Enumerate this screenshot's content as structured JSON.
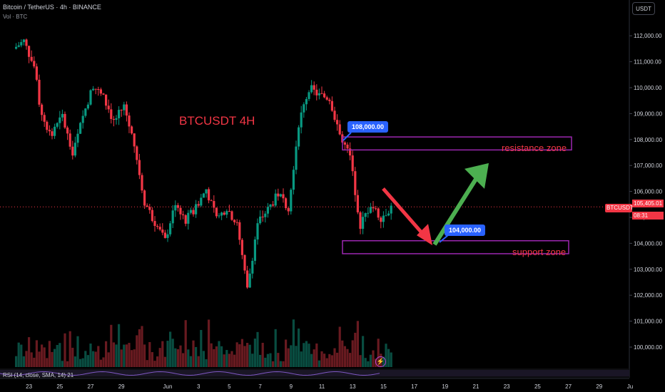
{
  "header": {
    "title": "Bitcoin / TetherUS · 4h · BINANCE",
    "volume_label": "Vol · BTC",
    "currency_button": "USDT"
  },
  "indicator": {
    "rsi_label": "RSI (14, close, SMA, 14) 21"
  },
  "annotations": {
    "chart_title": "BTCUSDT 4H",
    "resistance_label": "resistance zone",
    "support_label": "support zone",
    "callout_high": "108,000.00",
    "callout_low": "104,000.00",
    "symbol_tag": "BTCUSDT",
    "last_price": "105,405.01",
    "countdown": "08:31",
    "bolt_icon": "⚡"
  },
  "colors": {
    "up": "#089981",
    "down": "#f23645",
    "zone": "#9c27b0",
    "callout": "#2962ff",
    "arrow_down": "#f23645",
    "arrow_up": "#4caf50"
  },
  "chart_data": {
    "type": "candlestick",
    "title": "BTCUSDT 4H",
    "y_axis_ticks": [
      100000,
      101000,
      102000,
      103000,
      104000,
      105000,
      106000,
      107000,
      108000,
      109000,
      110000,
      111000,
      112000
    ],
    "y_tick_labels": [
      "100,000.00",
      "101,000.00",
      "102,000.00",
      "103,000.00",
      "104,000.00",
      "105,000.00",
      "106,000.00",
      "107,000.00",
      "108,000.00",
      "109,000.00",
      "110,000.00",
      "111,000.00",
      "112,000.00"
    ],
    "ylim": [
      99500,
      113000
    ],
    "x_tick_labels": [
      "23",
      "25",
      "27",
      "29",
      "Jun",
      "3",
      "5",
      "7",
      "9",
      "11",
      "13",
      "15",
      "17",
      "19",
      "21",
      "23",
      "25",
      "27",
      "29",
      "Ju"
    ],
    "resistance_zone": [
      107600,
      108100
    ],
    "support_zone": [
      103600,
      104100
    ],
    "last_price": 105405.01,
    "path_points": [
      [
        "May 22 00:00",
        111500
      ],
      [
        "May 22 16:00",
        111800
      ],
      [
        "May 23 08:00",
        110800
      ],
      [
        "May 23 20:00",
        108800
      ],
      [
        "May 24 12:00",
        108200
      ],
      [
        "May 25 04:00",
        108900
      ],
      [
        "May 25 20:00",
        107400
      ],
      [
        "May 26 12:00",
        108900
      ],
      [
        "May 27 04:00",
        110100
      ],
      [
        "May 27 20:00",
        109600
      ],
      [
        "May 28 12:00",
        108700
      ],
      [
        "May 29 04:00",
        109300
      ],
      [
        "May 29 20:00",
        107800
      ],
      [
        "May 30 12:00",
        105600
      ],
      [
        "May 31 04:00",
        104800
      ],
      [
        "May 31 20:00",
        104100
      ],
      [
        "Jun 1 12:00",
        105600
      ],
      [
        "Jun 2 04:00",
        104900
      ],
      [
        "Jun 2 20:00",
        105400
      ],
      [
        "Jun 3 12:00",
        106100
      ],
      [
        "Jun 4 04:00",
        104900
      ],
      [
        "Jun 4 20:00",
        105400
      ],
      [
        "Jun 5 12:00",
        104700
      ],
      [
        "Jun 6 04:00",
        102200
      ],
      [
        "Jun 6 20:00",
        104800
      ],
      [
        "Jun 7 12:00",
        105300
      ],
      [
        "Jun 8 04:00",
        105900
      ],
      [
        "Jun 8 20:00",
        105400
      ],
      [
        "Jun 9 12:00",
        108600
      ],
      [
        "Jun 10 04:00",
        110000
      ],
      [
        "Jun 10 20:00",
        109700
      ],
      [
        "Jun 11 12:00",
        109600
      ],
      [
        "Jun 12 04:00",
        108200
      ],
      [
        "Jun 12 20:00",
        107300
      ],
      [
        "Jun 13 12:00",
        104700
      ],
      [
        "Jun 14 04:00",
        105500
      ],
      [
        "Jun 14 20:00",
        105000
      ],
      [
        "Jun 15 12:00",
        105400
      ]
    ],
    "arrows": [
      {
        "direction": "down",
        "from_value": 106000,
        "to_value": 104200
      },
      {
        "direction": "up",
        "from_value": 104200,
        "to_value": 107200
      }
    ]
  }
}
